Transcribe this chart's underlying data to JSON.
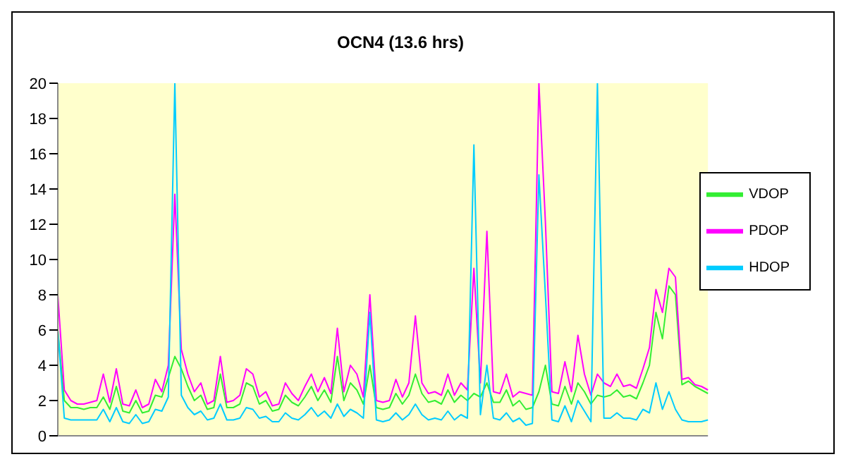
{
  "chart_data": {
    "type": "line",
    "title": "OCN4 (13.6 hrs)",
    "categories": [
      null,
      null,
      null,
      null,
      null,
      null,
      null,
      null,
      null,
      null,
      null,
      null,
      null,
      null,
      null,
      null,
      null,
      null,
      null,
      null,
      null,
      null,
      null,
      null,
      null,
      null,
      null,
      null,
      null,
      null,
      null,
      null,
      null,
      null,
      null,
      null,
      null,
      null,
      null,
      null,
      null,
      null,
      null,
      null,
      null,
      null,
      null,
      null,
      null,
      null,
      null,
      null,
      null,
      null,
      null,
      null,
      null,
      null,
      null,
      null,
      null,
      null,
      null,
      null,
      null,
      null,
      null,
      null,
      null,
      null,
      null,
      null,
      null,
      null,
      null,
      null,
      null,
      null,
      null,
      null,
      null,
      null,
      null,
      null,
      null,
      null,
      null,
      null,
      null,
      null,
      null,
      null,
      null,
      null,
      null,
      null,
      null,
      null,
      null,
      null,
      null
    ],
    "series": [
      {
        "name": "VDOP",
        "color": "#33ee33",
        "values": [
          6,
          2,
          1.6,
          1.6,
          1.5,
          1.6,
          1.6,
          2.2,
          1.5,
          2.8,
          1.4,
          1.3,
          2,
          1.3,
          1.4,
          2.3,
          2.2,
          3.3,
          4.5,
          3.8,
          2.8,
          2,
          2.3,
          1.5,
          1.6,
          3.5,
          1.6,
          1.6,
          1.8,
          3,
          2.8,
          1.8,
          2,
          1.4,
          1.5,
          2.3,
          1.9,
          1.7,
          2.2,
          2.8,
          2,
          2.6,
          1.9,
          4.5,
          2,
          3,
          2.6,
          1.8,
          4,
          1.6,
          1.5,
          1.6,
          2.4,
          1.8,
          2.3,
          3.5,
          2.4,
          1.9,
          2,
          1.8,
          2.6,
          1.9,
          2.3,
          2,
          2.4,
          2.2,
          3,
          1.9,
          1.9,
          2.6,
          1.7,
          2,
          1.5,
          1.6,
          2.5,
          4,
          1.8,
          1.7,
          2.8,
          1.8,
          3,
          2.5,
          1.8,
          2.3,
          2.2,
          2.3,
          2.6,
          2.2,
          2.3,
          2.1,
          3,
          4,
          7,
          5.5,
          8.5,
          8,
          2.9,
          3.1,
          2.8,
          2.6,
          2.4
        ]
      },
      {
        "name": "PDOP",
        "color": "#ff00ff",
        "values": [
          8,
          2.6,
          2,
          1.8,
          1.8,
          1.9,
          2,
          3.5,
          1.9,
          3.8,
          1.8,
          1.7,
          2.6,
          1.6,
          1.8,
          3.2,
          2.5,
          4,
          13.7,
          4.9,
          3.5,
          2.5,
          3,
          1.8,
          2,
          4.5,
          1.9,
          2,
          2.3,
          3.8,
          3.5,
          2.2,
          2.5,
          1.7,
          1.8,
          3,
          2.4,
          2,
          2.8,
          3.5,
          2.5,
          3.3,
          2.4,
          6.1,
          2.5,
          4,
          3.5,
          2.2,
          8,
          2,
          1.9,
          2,
          3.2,
          2.2,
          3,
          6.8,
          3,
          2.4,
          2.5,
          2.3,
          3.5,
          2.3,
          3,
          2.6,
          9.5,
          3,
          11.6,
          2.5,
          2.4,
          3.5,
          2.2,
          2.5,
          2.4,
          2.3,
          20,
          12.1,
          2.5,
          2.4,
          4.2,
          2.5,
          5.7,
          3.5,
          2.3,
          3.5,
          3,
          2.8,
          3.5,
          2.8,
          2.9,
          2.7,
          3.8,
          5,
          8.3,
          7,
          9.5,
          9,
          3.2,
          3.3,
          2.9,
          2.8,
          2.6
        ]
      },
      {
        "name": "HDOP",
        "color": "#00ccff",
        "values": [
          6,
          1,
          0.9,
          0.9,
          0.9,
          0.9,
          0.9,
          1.5,
          0.8,
          1.6,
          0.8,
          0.7,
          1.2,
          0.7,
          0.8,
          1.5,
          1.4,
          2.2,
          20,
          2.3,
          1.6,
          1.2,
          1.4,
          0.9,
          1,
          1.8,
          0.9,
          0.9,
          1,
          1.6,
          1.5,
          1,
          1.1,
          0.8,
          0.8,
          1.3,
          1,
          0.9,
          1.2,
          1.6,
          1.1,
          1.4,
          1,
          1.8,
          1.1,
          1.5,
          1.3,
          1,
          7,
          0.9,
          0.8,
          0.9,
          1.3,
          0.9,
          1.2,
          1.8,
          1.2,
          0.9,
          1,
          0.9,
          1.4,
          0.9,
          1.2,
          1,
          16.5,
          1.2,
          4,
          1,
          0.9,
          1.3,
          0.8,
          1,
          0.6,
          0.7,
          14.8,
          8,
          0.9,
          0.8,
          1.7,
          0.8,
          2,
          1.4,
          0.8,
          20,
          1,
          1,
          1.3,
          1,
          1,
          0.9,
          1.5,
          1.3,
          3,
          1.5,
          2.5,
          1.5,
          0.9,
          0.8,
          0.8,
          0.8,
          0.9
        ]
      }
    ],
    "ylim": [
      0,
      20
    ],
    "yticks": [
      0,
      2,
      4,
      6,
      8,
      10,
      12,
      14,
      16,
      18,
      20
    ],
    "legend": "right",
    "tick_labels": "y"
  }
}
